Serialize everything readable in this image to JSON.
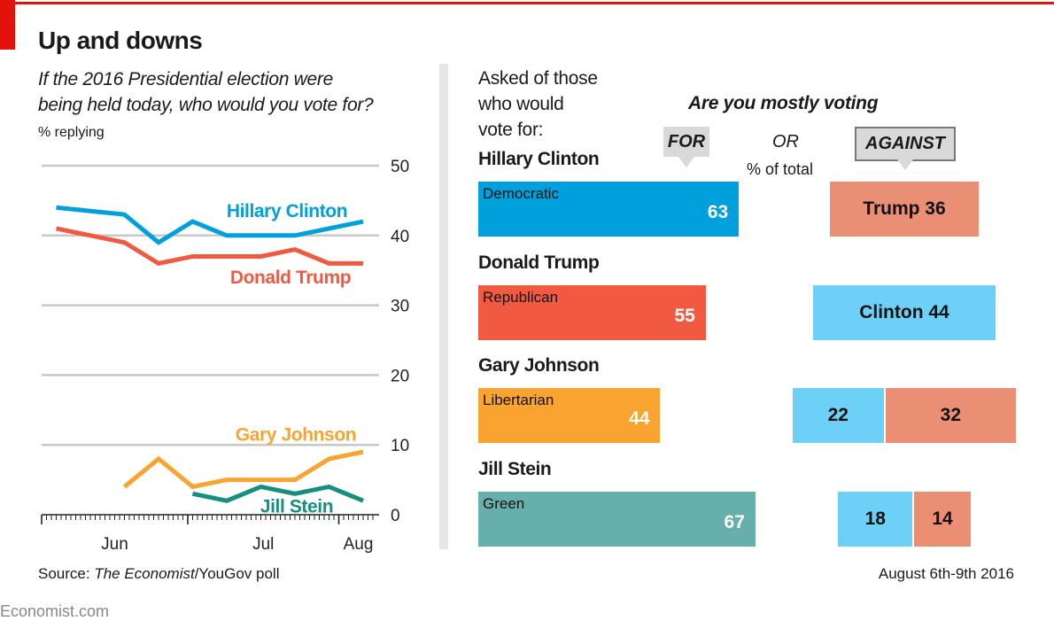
{
  "header": {
    "title": "Up and downs",
    "subtitle_line1": "If the 2016 Presidential election were",
    "subtitle_line2": "being held today, who would you vote for?",
    "unit": "% replying"
  },
  "footer": {
    "source_prefix": "Source: ",
    "source_italic": "The Economist",
    "source_suffix": "/YouGov poll",
    "brand": "Economist.com",
    "date": "August 6th-9th 2016"
  },
  "colors": {
    "accent": "#e3120b",
    "clinton": "#00a0dc",
    "trump": "#f15a40",
    "johnson": "#f9a431",
    "stein": "#178f80",
    "stein_bar": "#67afaa",
    "clinton_light": "#6dd0f7",
    "trump_light": "#eb8f74",
    "grid": "#c8c8c8"
  },
  "chart_data": [
    {
      "type": "line",
      "title": "If the 2016 Presidential election were being held today, who would you vote for?",
      "ylabel": "% replying",
      "ylim": [
        0,
        50
      ],
      "yticks": [
        "0",
        "10",
        "20",
        "30",
        "40",
        "50"
      ],
      "xlim_days_from_jun1": [
        0,
        68
      ],
      "xticks": [
        {
          "label": "Jun",
          "day": 15
        },
        {
          "label": "Jul",
          "day": 45.5
        },
        {
          "label": "Aug",
          "day": 65
        }
      ],
      "month_starts_days": [
        0,
        30,
        61
      ],
      "grid": true,
      "series": [
        {
          "name": "Hillary Clinton",
          "color_key": "clinton",
          "x": [
            3,
            17,
            24,
            31,
            38,
            45,
            52,
            59,
            66
          ],
          "values": [
            44,
            43,
            39,
            42,
            40,
            40,
            40,
            41,
            42
          ],
          "label_pos": [
            324,
            43.5
          ]
        },
        {
          "name": "Donald Trump",
          "color_key": "trump",
          "x": [
            3,
            17,
            24,
            31,
            38,
            45,
            52,
            59,
            66
          ],
          "values": [
            41,
            39,
            36,
            37,
            37,
            37,
            38,
            36,
            36
          ],
          "label_pos": [
            328,
            34
          ]
        },
        {
          "name": "Gary Johnson",
          "color_key": "johnson",
          "x": [
            17,
            24,
            31,
            38,
            45,
            52,
            59,
            66
          ],
          "values": [
            4,
            8,
            4,
            5,
            5,
            5,
            8,
            9
          ],
          "label_pos": [
            334,
            11.5
          ]
        },
        {
          "name": "Jill Stein",
          "color_key": "stein",
          "x": [
            31,
            38,
            45,
            52,
            59,
            66
          ],
          "values": [
            3,
            2,
            4,
            3,
            4,
            2
          ],
          "label_pos": [
            335,
            1.2
          ]
        }
      ]
    },
    {
      "type": "bar",
      "title": "Are you mostly voting",
      "question": [
        "Asked of those",
        "who would",
        "vote for:"
      ],
      "for_label": "FOR",
      "or_label": "OR",
      "against_label": "AGAINST",
      "unit": "% of total",
      "rows": [
        {
          "candidate": "Hillary Clinton",
          "party": "Democratic",
          "for": 63,
          "for_color": "clinton",
          "against": [
            {
              "label": "Trump 36",
              "value": 36,
              "color": "trump_light"
            }
          ]
        },
        {
          "candidate": "Donald Trump",
          "party": "Republican",
          "for": 55,
          "for_color": "trump",
          "against": [
            {
              "label": "Clinton 44",
              "value": 44,
              "color": "clinton_light"
            }
          ]
        },
        {
          "candidate": "Gary Johnson",
          "party": "Libertarian",
          "for": 44,
          "for_color": "johnson",
          "against": [
            {
              "label": "22",
              "value": 22,
              "color": "clinton_light"
            },
            {
              "label": "32",
              "value": 32,
              "color": "trump_light"
            }
          ]
        },
        {
          "candidate": "Jill Stein",
          "party": "Green",
          "for": 67,
          "for_color": "stein_bar",
          "against": [
            {
              "label": "18",
              "value": 18,
              "color": "clinton_light"
            },
            {
              "label": "14",
              "value": 14,
              "color": "trump_light"
            }
          ]
        }
      ]
    }
  ]
}
